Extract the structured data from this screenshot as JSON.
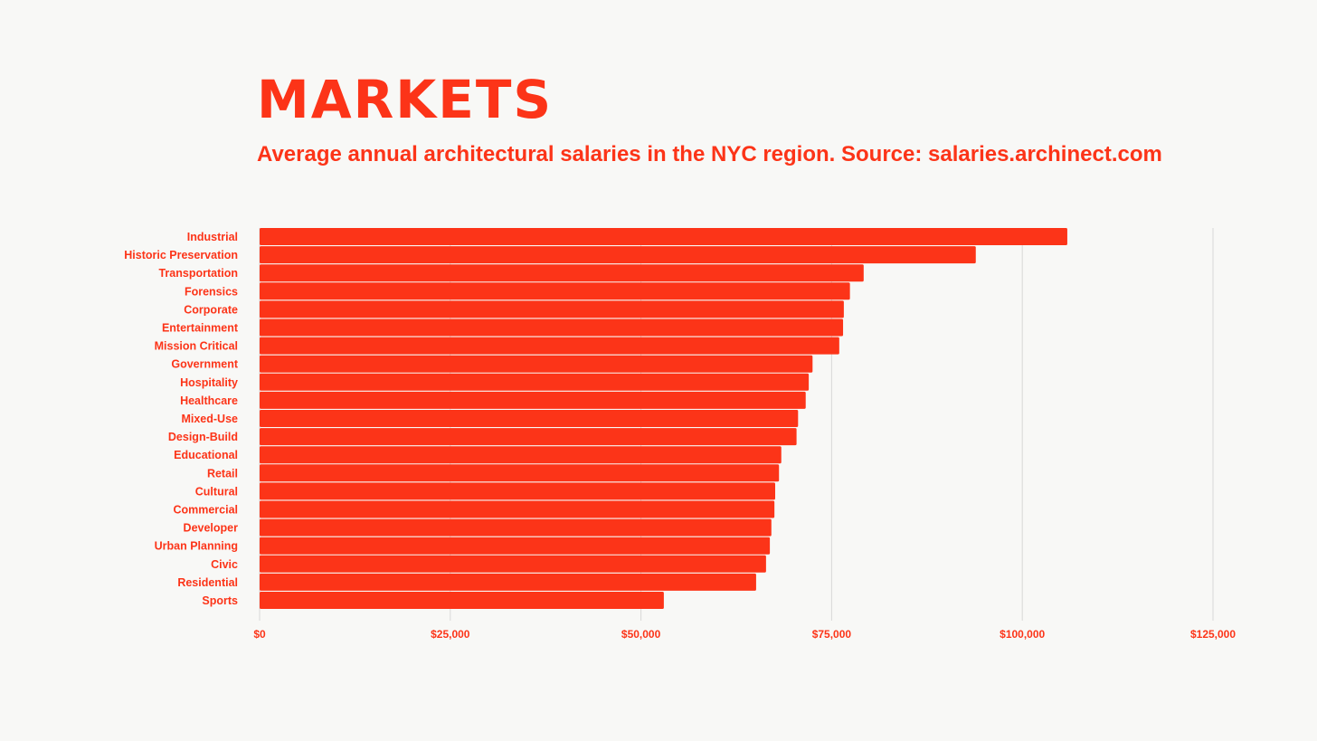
{
  "chart_data": {
    "type": "bar",
    "orientation": "horizontal",
    "title": "MARKETS",
    "subtitle": "Average annual architectural salaries in the NYC region. Source: salaries.archinect.com",
    "categories": [
      "Industrial",
      "Historic Preservation",
      "Transportation",
      "Forensics",
      "Corporate",
      "Entertainment",
      "Mission Critical",
      "Government",
      "Hospitality",
      "Healthcare",
      "Mixed-Use",
      "Design-Build",
      "Educational",
      "Retail",
      "Cultural",
      "Commercial",
      "Developer",
      "Urban Planning",
      "Civic",
      "Residential",
      "Sports"
    ],
    "values": [
      105900,
      93900,
      79200,
      77400,
      76600,
      76500,
      76000,
      72500,
      72000,
      71600,
      70600,
      70400,
      68400,
      68100,
      67600,
      67500,
      67100,
      66900,
      66400,
      65100,
      53000
    ],
    "xlim": [
      0,
      125000
    ],
    "xticks": [
      0,
      25000,
      50000,
      75000,
      100000,
      125000
    ],
    "xtick_labels": [
      "$0",
      "$25,000",
      "$50,000",
      "$75,000",
      "$100,000",
      "$125,000"
    ],
    "grid": "vertical",
    "bar_color": "#fc3418",
    "text_color": "#fc3418",
    "grid_color": "#d8d8d8"
  }
}
